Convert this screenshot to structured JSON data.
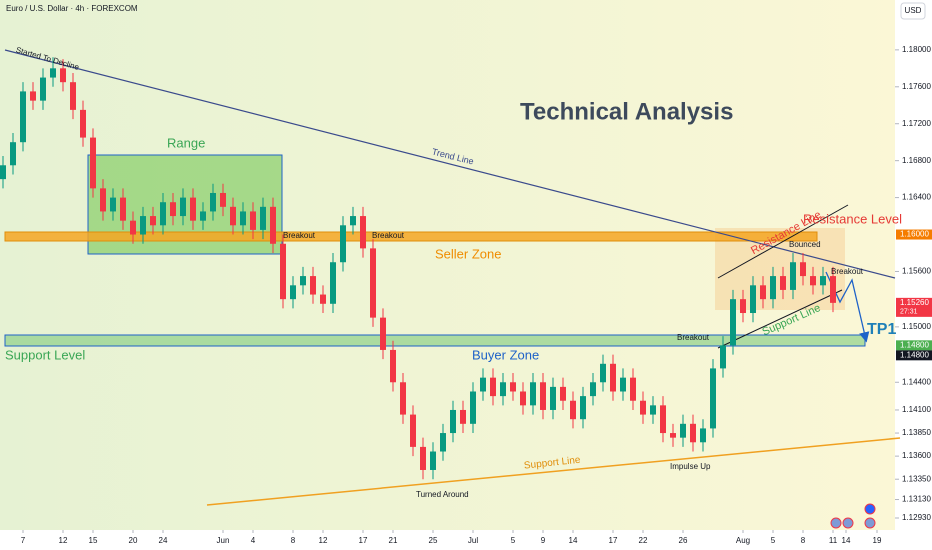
{
  "chart_data": {
    "type": "candlestick",
    "title": "Euro / U.S. Dollar · 4h · FOREXCOM",
    "currency": "USD",
    "up_color": "#089981",
    "down_color": "#f23645",
    "ohlc": [
      [
        1.166,
        1.1685,
        1.165,
        1.1675
      ],
      [
        1.1675,
        1.171,
        1.1665,
        1.17
      ],
      [
        1.17,
        1.1765,
        1.169,
        1.1755
      ],
      [
        1.1755,
        1.1765,
        1.1735,
        1.1745
      ],
      [
        1.1745,
        1.178,
        1.1735,
        1.177
      ],
      [
        1.177,
        1.1792,
        1.176,
        1.178
      ],
      [
        1.178,
        1.179,
        1.1755,
        1.1765
      ],
      [
        1.1765,
        1.1775,
        1.1725,
        1.1735
      ],
      [
        1.1735,
        1.1745,
        1.1695,
        1.1705
      ],
      [
        1.1705,
        1.1715,
        1.164,
        1.165
      ],
      [
        1.165,
        1.166,
        1.1615,
        1.1625
      ],
      [
        1.1625,
        1.165,
        1.1615,
        1.164
      ],
      [
        1.164,
        1.165,
        1.1605,
        1.1615
      ],
      [
        1.1615,
        1.1625,
        1.159,
        1.16
      ],
      [
        1.16,
        1.163,
        1.159,
        1.162
      ],
      [
        1.162,
        1.163,
        1.16,
        1.161
      ],
      [
        1.161,
        1.1645,
        1.16,
        1.1635
      ],
      [
        1.1635,
        1.1645,
        1.161,
        1.162
      ],
      [
        1.162,
        1.165,
        1.161,
        1.164
      ],
      [
        1.164,
        1.165,
        1.1605,
        1.1615
      ],
      [
        1.1615,
        1.1635,
        1.1605,
        1.1625
      ],
      [
        1.1625,
        1.1655,
        1.1615,
        1.1645
      ],
      [
        1.1645,
        1.1655,
        1.162,
        1.163
      ],
      [
        1.163,
        1.164,
        1.16,
        1.161
      ],
      [
        1.161,
        1.1635,
        1.16,
        1.1625
      ],
      [
        1.1625,
        1.1635,
        1.1595,
        1.1605
      ],
      [
        1.1605,
        1.164,
        1.1595,
        1.163
      ],
      [
        1.163,
        1.164,
        1.158,
        1.159
      ],
      [
        1.159,
        1.16,
        1.152,
        1.153
      ],
      [
        1.153,
        1.1555,
        1.152,
        1.1545
      ],
      [
        1.1545,
        1.1565,
        1.1535,
        1.1555
      ],
      [
        1.1555,
        1.1565,
        1.1525,
        1.1535
      ],
      [
        1.1535,
        1.1545,
        1.1515,
        1.1525
      ],
      [
        1.1525,
        1.158,
        1.1515,
        1.157
      ],
      [
        1.157,
        1.162,
        1.156,
        1.161
      ],
      [
        1.161,
        1.163,
        1.16,
        1.162
      ],
      [
        1.162,
        1.163,
        1.1575,
        1.1585
      ],
      [
        1.1585,
        1.1595,
        1.15,
        1.151
      ],
      [
        1.151,
        1.152,
        1.1465,
        1.1475
      ],
      [
        1.1475,
        1.1485,
        1.143,
        1.144
      ],
      [
        1.144,
        1.145,
        1.1395,
        1.1405
      ],
      [
        1.1405,
        1.1415,
        1.136,
        1.137
      ],
      [
        1.137,
        1.138,
        1.1335,
        1.1345
      ],
      [
        1.1345,
        1.1375,
        1.1335,
        1.1365
      ],
      [
        1.1365,
        1.1395,
        1.1355,
        1.1385
      ],
      [
        1.1385,
        1.142,
        1.1375,
        1.141
      ],
      [
        1.141,
        1.142,
        1.1385,
        1.1395
      ],
      [
        1.1395,
        1.144,
        1.1385,
        1.143
      ],
      [
        1.143,
        1.1455,
        1.142,
        1.1445
      ],
      [
        1.1445,
        1.1455,
        1.1415,
        1.1425
      ],
      [
        1.1425,
        1.145,
        1.1415,
        1.144
      ],
      [
        1.144,
        1.145,
        1.142,
        1.143
      ],
      [
        1.143,
        1.144,
        1.1405,
        1.1415
      ],
      [
        1.1415,
        1.145,
        1.1405,
        1.144
      ],
      [
        1.144,
        1.145,
        1.14,
        1.141
      ],
      [
        1.141,
        1.1445,
        1.14,
        1.1435
      ],
      [
        1.1435,
        1.1445,
        1.141,
        1.142
      ],
      [
        1.142,
        1.143,
        1.139,
        1.14
      ],
      [
        1.14,
        1.1435,
        1.139,
        1.1425
      ],
      [
        1.1425,
        1.145,
        1.1415,
        1.144
      ],
      [
        1.144,
        1.147,
        1.143,
        1.146
      ],
      [
        1.146,
        1.147,
        1.142,
        1.143
      ],
      [
        1.143,
        1.1455,
        1.142,
        1.1445
      ],
      [
        1.1445,
        1.1455,
        1.141,
        1.142
      ],
      [
        1.142,
        1.143,
        1.1395,
        1.1405
      ],
      [
        1.1405,
        1.1425,
        1.1395,
        1.1415
      ],
      [
        1.1415,
        1.1425,
        1.1375,
        1.1385
      ],
      [
        1.1385,
        1.1395,
        1.137,
        1.138
      ],
      [
        1.138,
        1.1405,
        1.137,
        1.1395
      ],
      [
        1.1395,
        1.1405,
        1.1365,
        1.1375
      ],
      [
        1.1375,
        1.14,
        1.1365,
        1.139
      ],
      [
        1.139,
        1.1465,
        1.138,
        1.1455
      ],
      [
        1.1455,
        1.149,
        1.1445,
        1.148
      ],
      [
        1.148,
        1.154,
        1.147,
        1.153
      ],
      [
        1.153,
        1.154,
        1.1505,
        1.1515
      ],
      [
        1.1515,
        1.1555,
        1.1505,
        1.1545
      ],
      [
        1.1545,
        1.1555,
        1.152,
        1.153
      ],
      [
        1.153,
        1.1565,
        1.152,
        1.1555
      ],
      [
        1.1555,
        1.1565,
        1.153,
        1.154
      ],
      [
        1.154,
        1.158,
        1.153,
        1.157
      ],
      [
        1.157,
        1.158,
        1.1545,
        1.1555
      ],
      [
        1.1555,
        1.1565,
        1.1535,
        1.1545
      ],
      [
        1.1545,
        1.1565,
        1.1535,
        1.1555
      ],
      [
        1.1555,
        1.1565,
        1.1516,
        1.1526
      ]
    ],
    "xlim": [
      -0.3,
      89.2
    ],
    "xticks": [
      {
        "value": 2,
        "label": "7"
      },
      {
        "value": 6,
        "label": "12"
      },
      {
        "value": 9,
        "label": "15"
      },
      {
        "value": 13,
        "label": "20"
      },
      {
        "value": 16,
        "label": "24"
      },
      {
        "value": 22,
        "label": "Jun"
      },
      {
        "value": 25,
        "label": "4"
      },
      {
        "value": 29,
        "label": "8"
      },
      {
        "value": 32,
        "label": "12"
      },
      {
        "value": 36,
        "label": "17"
      },
      {
        "value": 39,
        "label": "21"
      },
      {
        "value": 43,
        "label": "25"
      },
      {
        "value": 47,
        "label": "Jul"
      },
      {
        "value": 51,
        "label": "5"
      },
      {
        "value": 54,
        "label": "9"
      },
      {
        "value": 57,
        "label": "14"
      },
      {
        "value": 61,
        "label": "17"
      },
      {
        "value": 64,
        "label": "22"
      },
      {
        "value": 68,
        "label": "26"
      },
      {
        "value": 74,
        "label": "Aug"
      },
      {
        "value": 77,
        "label": "5"
      },
      {
        "value": 80,
        "label": "8"
      },
      {
        "value": 83,
        "label": "11"
      },
      {
        "value": 84.3,
        "label": "14"
      },
      {
        "value": 87.4,
        "label": "19"
      }
    ],
    "ylim": [
      1.128,
      1.1854
    ],
    "yticks": [
      {
        "value": 1.18,
        "label": "1.18000"
      },
      {
        "value": 1.176,
        "label": "1.17600"
      },
      {
        "value": 1.172,
        "label": "1.17200"
      },
      {
        "value": 1.168,
        "label": "1.16800"
      },
      {
        "value": 1.164,
        "label": "1.16400"
      },
      {
        "value": 1.156,
        "label": "1.15600"
      },
      {
        "value": 1.15,
        "label": "1.15000"
      },
      {
        "value": 1.144,
        "label": "1.14400"
      },
      {
        "value": 1.141,
        "label": "1.14100"
      },
      {
        "value": 1.1385,
        "label": "1.13850"
      },
      {
        "value": 1.136,
        "label": "1.13600"
      },
      {
        "value": 1.1335,
        "label": "1.13350"
      },
      {
        "value": 1.1313,
        "label": "1.13130"
      },
      {
        "value": 1.1293,
        "label": "1.12930"
      }
    ],
    "price_labels": [
      {
        "value": 1.16,
        "label": "1.16000",
        "color": "#f57c00"
      },
      {
        "value": 1.1526,
        "label": "1.15260",
        "color": "#f23645"
      },
      {
        "value": 1.148,
        "label": "1.14800",
        "color": "#4caf50"
      },
      {
        "value": 1.148,
        "label": "1.14800",
        "color": "#131722"
      }
    ],
    "countdown": "27:31",
    "annotations": [
      "Started To Decline",
      "Technical Analysis",
      "Range",
      "Trend Line",
      "Breakout",
      "Breakout",
      "Seller Zone",
      "Resistance Level",
      "Resistance Line",
      "Bounced",
      "Breakout",
      "Support Line",
      "TP1",
      "Support Level",
      "Breakout",
      "Buyer Zone",
      "Support Line",
      "Turned Around",
      "Impulse Up"
    ]
  }
}
